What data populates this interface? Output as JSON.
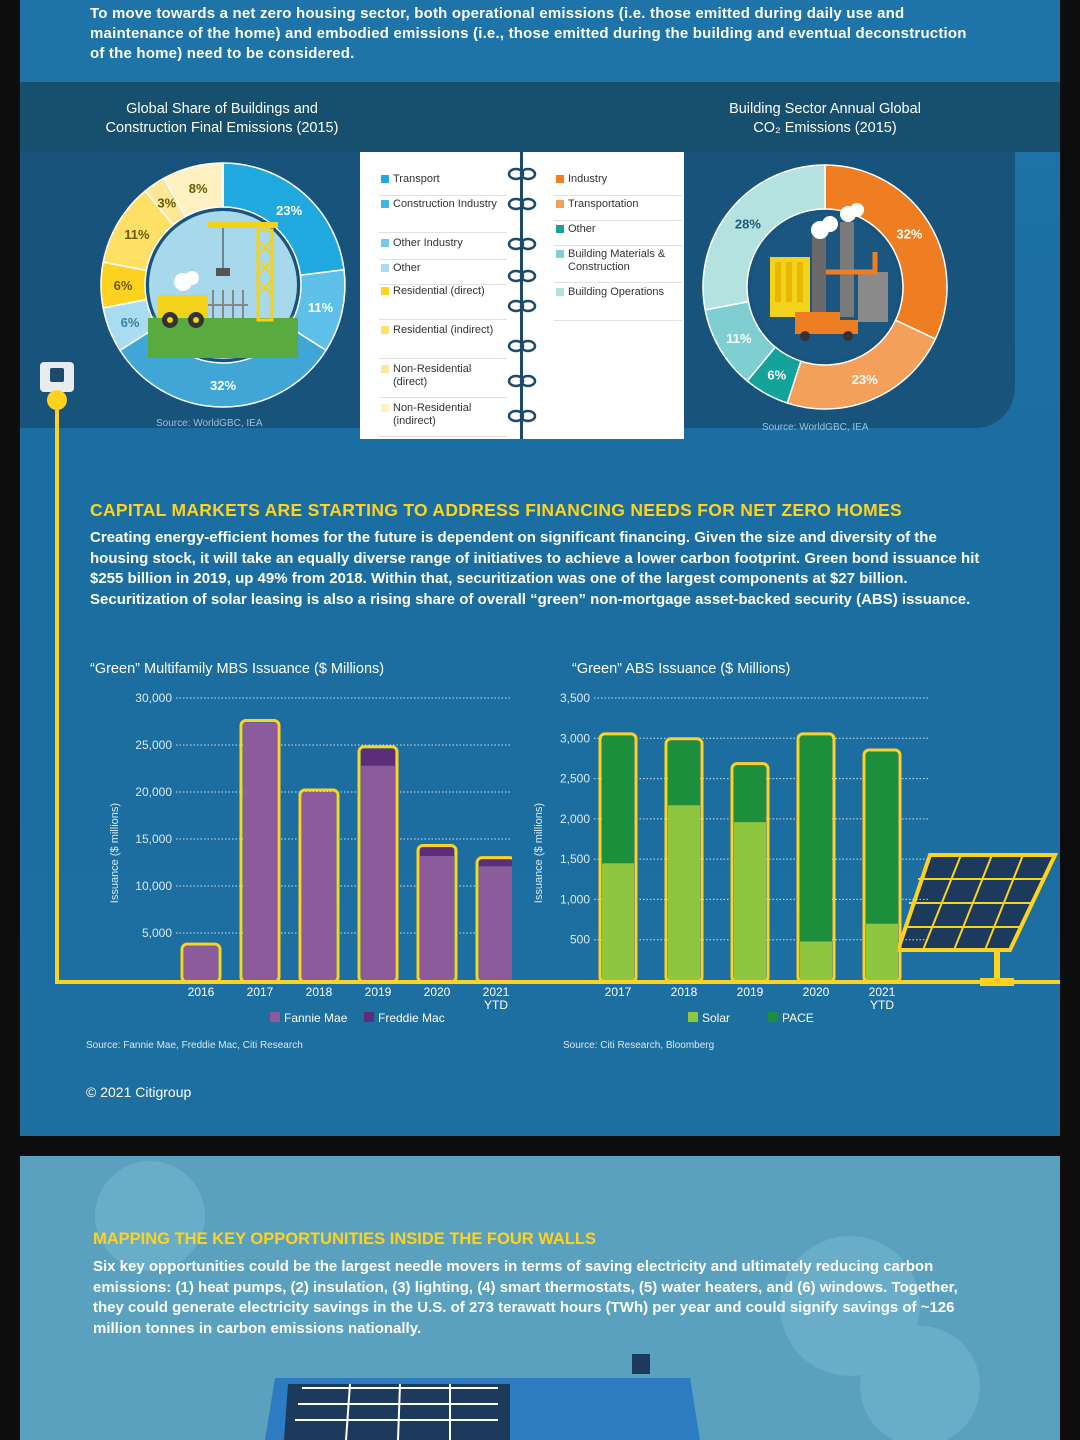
{
  "intro_text": "To move towards a net zero housing sector, both operational emissions (i.e. those emitted during daily use and maintenance of the home) and embodied emissions (i.e., those emitted during the building and eventual deconstruction of the home) need to be considered.",
  "colors": {
    "purple": "#8b5b9b",
    "dark_purple": "#5c2d7a",
    "light_green": "#8ec63f",
    "dark_green": "#1d8f3c",
    "yellow": "#ffd21f",
    "orange": "#ef8a2e"
  },
  "left_donut": {
    "title_line1": "Global Share of Buildings and",
    "title_line2": "Construction Final Emissions (2015)",
    "source": "Source: WorldGBC, IEA"
  },
  "right_donut": {
    "title_line1": "Building Sector Annual Global",
    "title_line2": "CO₂ Emissions (2015)",
    "source": "Source: WorldGBC, IEA"
  },
  "legend": {
    "left": [
      {
        "label": "Transport",
        "color": "#1fa9df"
      },
      {
        "label": "Construction Industry",
        "color": "#3fb6e4"
      },
      {
        "label": "Other Industry",
        "color": "#78c8ea"
      },
      {
        "label": "Other",
        "color": "#a9dcf0"
      },
      {
        "label": "Residential (direct)",
        "color": "#ffd21f"
      },
      {
        "label": "Residential (indirect)",
        "color": "#ffe066"
      },
      {
        "label": "Non-Residential (direct)",
        "color": "#ffe79a"
      },
      {
        "label": "Non-Residential (indirect)",
        "color": "#fff1c2"
      }
    ],
    "right": [
      {
        "label": "Industry",
        "color": "#ef7d22"
      },
      {
        "label": "Transportation",
        "color": "#f4a05a"
      },
      {
        "label": "Other",
        "color": "#14a39a"
      },
      {
        "label": "Building Materials & Construction",
        "color": "#7fcfd2"
      },
      {
        "label": "Building Operations",
        "color": "#b3e2e0"
      }
    ]
  },
  "headline": "CAPITAL MARKETS ARE STARTING TO ADDRESS FINANCING NEEDS FOR NET ZERO HOMES",
  "paragraph": "Creating energy-efficient homes for the future is dependent on significant financing. Given the size and diversity of the housing stock, it will take an equally diverse range of initiatives to achieve a lower carbon footprint. Green bond issuance hit $255 billion in 2019, up 49% from 2018. Within that, securitization was one of the largest components at $27 billion. Securitization of solar leasing is also a rising share of overall “green” non-mortgage asset-backed security (ABS) issuance.",
  "copyright": "© 2021 Citigroup",
  "headline2": "MAPPING THE KEY OPPORTUNITIES INSIDE THE FOUR WALLS",
  "paragraph2": "Six key opportunities could be the largest needle movers in terms of saving electricity and ultimately reducing carbon emissions:  (1) heat pumps, (2) insulation, (3) lighting, (4) smart thermostats, (5) water heaters, and (6) windows.  Together, they could generate electricity savings in the U.S. of 273 terawatt hours (TWh) per year and could signify savings of ~126 million tonnes in carbon emissions nationally.",
  "chart_data": [
    {
      "type": "pie",
      "title": "Global Share of Buildings and Construction Final Emissions (2015)",
      "slices": [
        {
          "label": "23%",
          "value": 23,
          "color": "#1fa9df"
        },
        {
          "label": "11%",
          "value": 11,
          "color": "#5ec0e8"
        },
        {
          "label": "32%",
          "value": 32,
          "color": "#3fa6d6"
        },
        {
          "label": "6%",
          "value": 6,
          "color": "#a9dcf0"
        },
        {
          "label": "6%",
          "value": 6,
          "color": "#ffd21f"
        },
        {
          "label": "11%",
          "value": 11,
          "color": "#ffe066"
        },
        {
          "label": "3%",
          "value": 3,
          "color": "#ffe79a"
        },
        {
          "label": "8%",
          "value": 8,
          "color": "#fff1c2"
        }
      ]
    },
    {
      "type": "pie",
      "title": "Building Sector Annual Global CO₂ Emissions (2015)",
      "slices": [
        {
          "label": "32%",
          "value": 32,
          "color": "#ef7d22"
        },
        {
          "label": "23%",
          "value": 23,
          "color": "#f4a05a"
        },
        {
          "label": "6%",
          "value": 6,
          "color": "#14a39a"
        },
        {
          "label": "11%",
          "value": 11,
          "color": "#7fcfd2"
        },
        {
          "label": "28%",
          "value": 28,
          "color": "#b3e2e0"
        }
      ]
    },
    {
      "type": "bar",
      "stacked": true,
      "title": "“Green” Multifamily MBS Issuance ($ Millions)",
      "ylabel": "Issuance ($ millions)",
      "ylim": [
        0,
        30000
      ],
      "yticks": [
        "5,000",
        "10,000",
        "15,000",
        "20,000",
        "25,000",
        "30,000"
      ],
      "categories": [
        "2016",
        "2017",
        "2018",
        "2019",
        "2020",
        "2021"
      ],
      "category_sub": [
        "",
        "",
        "",
        "",
        "",
        "YTD"
      ],
      "series": [
        {
          "name": "Fannie Mae",
          "color": "#8b5b9b",
          "values": [
            3600,
            27400,
            20000,
            22800,
            13200,
            12100
          ]
        },
        {
          "name": "Freddie Mac",
          "color": "#5c2d7a",
          "values": [
            0,
            0,
            0,
            1800,
            900,
            700
          ]
        }
      ],
      "source": "Source: Fannie Mae, Freddie Mac, Citi Research"
    },
    {
      "type": "bar",
      "stacked": true,
      "title": "“Green” ABS Issuance ($ Millions)",
      "ylabel": "Issuance ($ millions)",
      "ylim": [
        0,
        3500
      ],
      "yticks": [
        "500",
        "1,000",
        "1,500",
        "2,000",
        "2,500",
        "3,000",
        "3,500"
      ],
      "categories": [
        "2017",
        "2018",
        "2019",
        "2020",
        "2021"
      ],
      "category_sub": [
        "",
        "",
        "",
        "",
        "YTD"
      ],
      "series": [
        {
          "name": "Solar",
          "color": "#8ec63f",
          "values": [
            1450,
            2170,
            1960,
            480,
            700
          ]
        },
        {
          "name": "PACE",
          "color": "#1d8f3c",
          "values": [
            1580,
            800,
            700,
            2550,
            2130
          ]
        }
      ],
      "source": "Source: Citi Research, Bloomberg"
    }
  ]
}
